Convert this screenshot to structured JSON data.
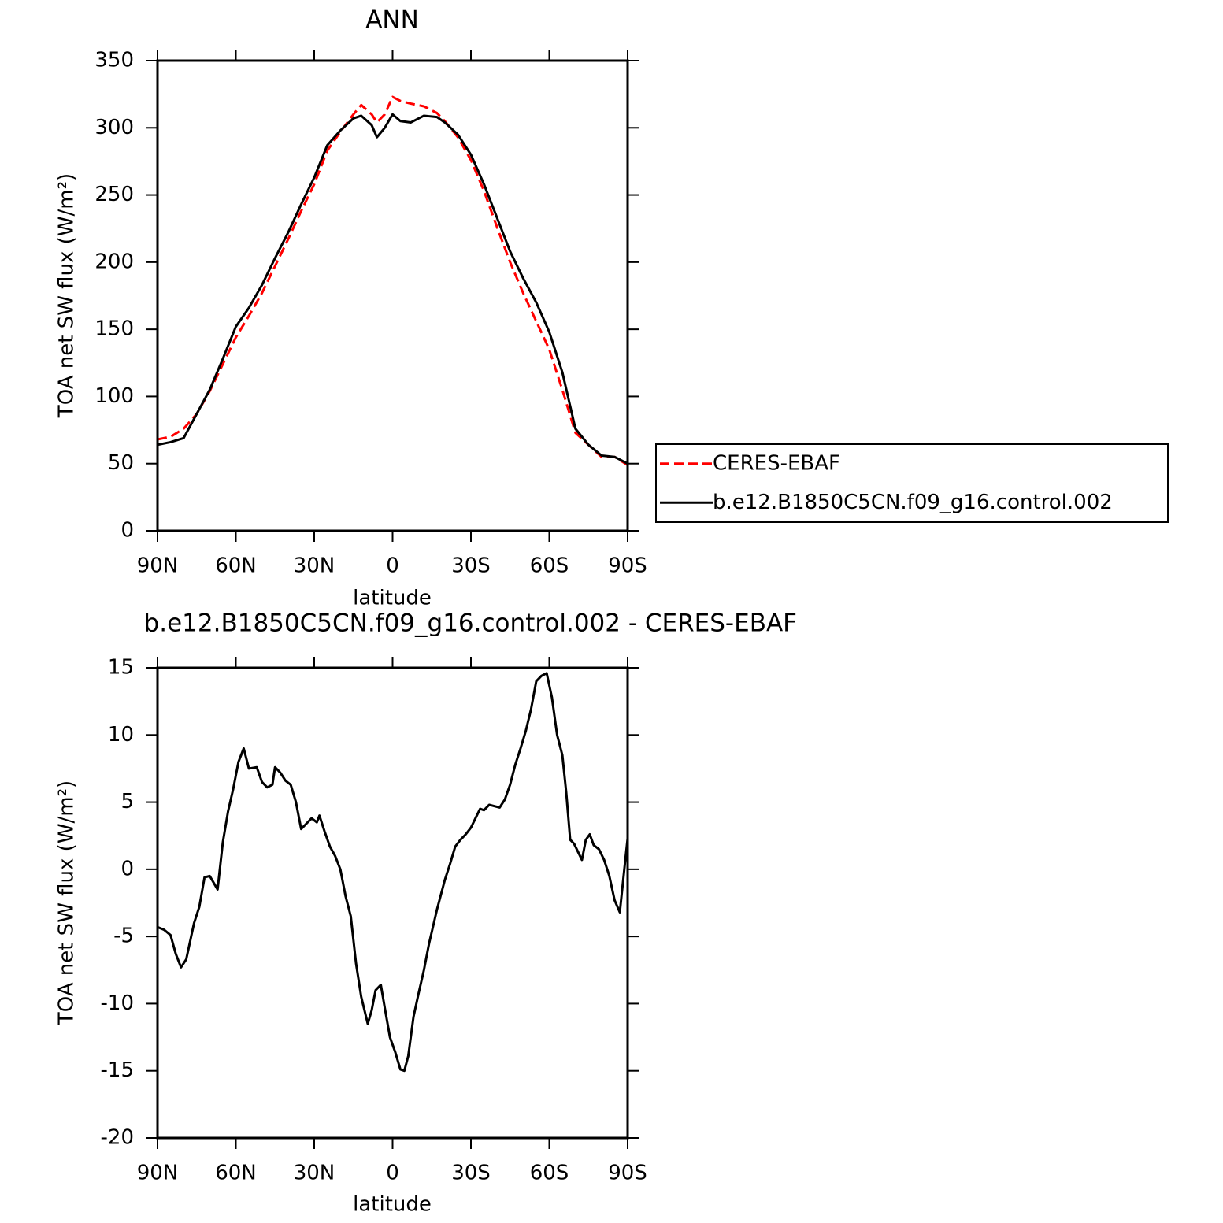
{
  "chart_data": [
    {
      "type": "line",
      "title": "ANN",
      "x_label": "latitude",
      "y_label": "TOA net SW flux (W/m²)",
      "xlim": [
        90,
        -90
      ],
      "xticks": [
        {
          "value": 90,
          "label": "90N"
        },
        {
          "value": 60,
          "label": "60N"
        },
        {
          "value": 30,
          "label": "30N"
        },
        0,
        {
          "value": -30,
          "label": "30S"
        },
        {
          "value": -60,
          "label": "60S"
        },
        {
          "value": -90,
          "label": "90S"
        }
      ],
      "ylim": [
        0,
        350
      ],
      "yticks": [
        0,
        50,
        100,
        150,
        200,
        250,
        300,
        350
      ],
      "legend": "right",
      "x": [
        90,
        85,
        80,
        75,
        70,
        65,
        60,
        55,
        50,
        45,
        40,
        35,
        30,
        25,
        20,
        15,
        12,
        8,
        6,
        3,
        0,
        -3,
        -7,
        -12,
        -17,
        -20,
        -25,
        -30,
        -35,
        -40,
        -45,
        -50,
        -55,
        -60,
        -65,
        -70,
        -75,
        -80,
        -85,
        -90
      ],
      "series": [
        {
          "name": "CERES-EBAF",
          "color": "#ff0000",
          "line_style": "dashed",
          "values": [
            68,
            70,
            76,
            87,
            104,
            124,
            144,
            160,
            177,
            197,
            217,
            238,
            258,
            283,
            297,
            310,
            317,
            310,
            304,
            310,
            323,
            320,
            318,
            316,
            311,
            305,
            293,
            276,
            253,
            226,
            200,
            177,
            156,
            135,
            105,
            73,
            64,
            55,
            55,
            49
          ]
        },
        {
          "name": "b.e12.B1850C5CN.f09_g16.control.002",
          "color": "#000000",
          "line_style": "solid",
          "values": [
            64,
            66,
            69,
            87,
            105,
            128,
            152,
            166,
            183,
            203,
            222,
            243,
            263,
            287,
            298,
            307,
            309,
            302,
            293,
            300,
            310,
            305,
            304,
            309,
            308,
            304,
            295,
            280,
            258,
            233,
            208,
            188,
            170,
            148,
            118,
            76,
            64,
            56,
            55,
            50
          ]
        }
      ]
    },
    {
      "type": "line",
      "title": "b.e12.B1850C5CN.f09_g16.control.002 - CERES-EBAF",
      "x_label": "latitude",
      "y_label": "TOA net SW flux (W/m²)",
      "xlim": [
        90,
        -90
      ],
      "xticks": [
        {
          "value": 90,
          "label": "90N"
        },
        {
          "value": 60,
          "label": "60N"
        },
        {
          "value": 30,
          "label": "30N"
        },
        0,
        {
          "value": -30,
          "label": "30S"
        },
        {
          "value": -60,
          "label": "60S"
        },
        {
          "value": -90,
          "label": "90S"
        }
      ],
      "ylim": [
        -20,
        15
      ],
      "yticks": [
        -20,
        -15,
        -10,
        -5,
        0,
        5,
        10,
        15
      ],
      "x": [
        90,
        87.5,
        85,
        83,
        81,
        79,
        76,
        74,
        72,
        70,
        67,
        65,
        63,
        61,
        59,
        57,
        55,
        52,
        50,
        48,
        46,
        45,
        43,
        41,
        39,
        37,
        35,
        33,
        31,
        29,
        28,
        26,
        24,
        22,
        20,
        18,
        16,
        14,
        12,
        10.5,
        9.5,
        8,
        6.5,
        4.5,
        3,
        1,
        -1,
        -3,
        -4.5,
        -6,
        -8,
        -10,
        -12,
        -14,
        -17,
        -20,
        -22,
        -24,
        -26,
        -28,
        -30,
        -32,
        -33.5,
        -35,
        -37,
        -39,
        -41,
        -43,
        -45,
        -47,
        -49,
        -51,
        -53,
        -55,
        -57,
        -59,
        -61,
        -63,
        -65,
        -66.5,
        -68,
        -69.5,
        -71,
        -72.5,
        -74,
        -75.5,
        -77,
        -79,
        -81,
        -83,
        -85,
        -87,
        -89,
        -90
      ],
      "series": [
        {
          "color": "#000000",
          "line_style": "solid",
          "values": [
            -4.3,
            -4.5,
            -4.9,
            -6.3,
            -7.3,
            -6.7,
            -4,
            -2.8,
            -0.6,
            -0.5,
            -1.5,
            2,
            4.3,
            6,
            8,
            9,
            7.5,
            7.6,
            6.5,
            6.1,
            6.3,
            7.6,
            7.2,
            6.6,
            6.3,
            5.0,
            3.0,
            3.4,
            3.8,
            3.5,
            4.0,
            2.8,
            1.7,
            1.0,
            0,
            -2,
            -3.5,
            -7,
            -9.5,
            -10.7,
            -11.5,
            -10.5,
            -9.0,
            -8.6,
            -10.3,
            -12.5,
            -13.6,
            -14.9,
            -15,
            -13.9,
            -11,
            -9.2,
            -7.5,
            -5.5,
            -3,
            -0.8,
            0.4,
            1.7,
            2.2,
            2.6,
            3.1,
            3.9,
            4.5,
            4.4,
            4.8,
            4.7,
            4.6,
            5.2,
            6.3,
            7.8,
            9,
            10.3,
            11.9,
            14,
            14.4,
            14.6,
            12.8,
            10,
            8.5,
            5.7,
            2.2,
            1.9,
            1.3,
            0.7,
            2.2,
            2.6,
            1.8,
            1.5,
            0.7,
            -0.5,
            -2.3,
            -3.2,
            0.5,
            2.3
          ]
        }
      ]
    }
  ]
}
